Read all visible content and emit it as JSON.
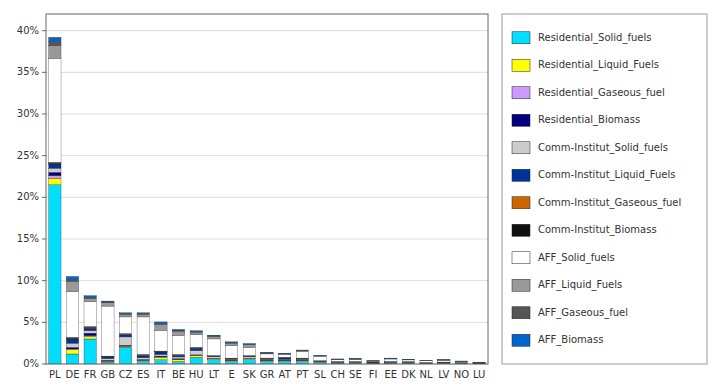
{
  "chart_data": {
    "type": "bar",
    "stacked": true,
    "grid": true,
    "legend": "right",
    "categories": [
      "PL",
      "DE",
      "FR",
      "GB",
      "CZ",
      "ES",
      "IT",
      "BE",
      "HU",
      "LT",
      "E",
      "SK",
      "GR",
      "AT",
      "PT",
      "SL",
      "CH",
      "SE",
      "FI",
      "EE",
      "DK",
      "NL",
      "LV",
      "NO",
      "LU"
    ],
    "ylim": [
      0,
      0.42
    ],
    "yticks": [
      {
        "value": 0,
        "label": "0%"
      },
      {
        "value": 0.05,
        "label": "5%"
      },
      {
        "value": 0.1,
        "label": "10%"
      },
      {
        "value": 0.15,
        "label": "15%"
      },
      {
        "value": 0.2,
        "label": "20%"
      },
      {
        "value": 0.25,
        "label": "25%"
      },
      {
        "value": 0.3,
        "label": "30%"
      },
      {
        "value": 0.35,
        "label": "35%"
      },
      {
        "value": 0.4,
        "label": "40%"
      }
    ],
    "series": [
      {
        "name": "Residential_Solid_fuels",
        "color": "#00DDFF",
        "values": [
          0.215,
          0.012,
          0.03,
          0.002,
          0.02,
          0.003,
          0.005,
          0.003,
          0.008,
          0.005,
          0.003,
          0.005,
          0.003,
          0.003,
          0.003,
          0.002,
          0.001,
          0.001,
          0.0005,
          0.001,
          0.001,
          0.0005,
          0.001,
          0.0005,
          0.0003
        ]
      },
      {
        "name": "Residential_Liquid_Fuels",
        "color": "#FFFF00",
        "values": [
          0.008,
          0.005,
          0.003,
          0.001,
          0.001,
          0.001,
          0.003,
          0.002,
          0.002,
          0.001,
          0.001,
          0.001,
          0.001,
          0.001,
          0.001,
          0.0005,
          0.0005,
          0.0005,
          0.0005,
          0.0005,
          0.0005,
          0.0003,
          0.0003,
          0.0003,
          0.0002
        ]
      },
      {
        "name": "Residential_Gaseous_fuel",
        "color": "#CC99FF",
        "values": [
          0.003,
          0.001,
          0.001,
          0.0005,
          0.0005,
          0.0005,
          0.0005,
          0.0005,
          0.0005,
          0.0002,
          0.0002,
          0.0002,
          0.0002,
          0.0002,
          0.0002,
          0.0001,
          0.0001,
          0.0001,
          0.0001,
          0.0001,
          0.0001,
          0.0001,
          0.0001,
          0.0001,
          0.0001
        ]
      },
      {
        "name": "Residential_Biomass",
        "color": "#000080",
        "values": [
          0.004,
          0.002,
          0.003,
          0.001,
          0.001,
          0.001,
          0.001,
          0.001,
          0.0005,
          0.0005,
          0.0005,
          0.0005,
          0.0005,
          0.0005,
          0.0005,
          0.0002,
          0.0002,
          0.0002,
          0.0001,
          0.0002,
          0.0001,
          0.0001,
          0.0001,
          0.0001,
          0.0001
        ]
      },
      {
        "name": "Comm-Institut_Solid_fuels",
        "color": "#CCCCCC",
        "values": [
          0.005,
          0.005,
          0.003,
          0.002,
          0.01,
          0.002,
          0.002,
          0.002,
          0.005,
          0.002,
          0.001,
          0.002,
          0.001,
          0.001,
          0.001,
          0.0005,
          0.0005,
          0.0005,
          0.0005,
          0.0005,
          0.0005,
          0.0003,
          0.0003,
          0.0003,
          0.0002
        ]
      },
      {
        "name": "Comm-Institut_Liquid_Fuels",
        "color": "#003399",
        "values": [
          0.005,
          0.005,
          0.003,
          0.002,
          0.003,
          0.003,
          0.003,
          0.002,
          0.003,
          0.001,
          0.001,
          0.001,
          0.001,
          0.002,
          0.001,
          0.0005,
          0.0005,
          0.0005,
          0.0005,
          0.0005,
          0.0005,
          0.0003,
          0.0003,
          0.0003,
          0.0002
        ]
      },
      {
        "name": "Comm-Institut_Gaseous_fuel",
        "color": "#CC6600",
        "values": [
          0.001,
          0.001,
          0.001,
          0.0005,
          0.0005,
          0.0005,
          0.0005,
          0.0005,
          0.0005,
          0.0002,
          0.0002,
          0.0002,
          0.0002,
          0.0002,
          0.0002,
          0.0001,
          0.0001,
          0.0001,
          0.0001,
          0.0001,
          0.0001,
          0.0001,
          0.0001,
          0.0001,
          0.0001
        ]
      },
      {
        "name": "Comm-Institut_Biomass",
        "color": "#111111",
        "values": [
          0.001,
          0.001,
          0.001,
          0.0005,
          0.0005,
          0.0005,
          0.0005,
          0.0005,
          0.0005,
          0.0002,
          0.0002,
          0.0002,
          0.0002,
          0.0002,
          0.0002,
          0.0001,
          0.0001,
          0.0001,
          0.0001,
          0.0001,
          0.0001,
          0.0001,
          0.0001,
          0.0001,
          0.0001
        ]
      },
      {
        "name": "AFF_Solid_fuels",
        "color": "#FFFFFF",
        "values": [
          0.125,
          0.055,
          0.03,
          0.06,
          0.02,
          0.045,
          0.025,
          0.023,
          0.015,
          0.02,
          0.015,
          0.01,
          0.005,
          0.003,
          0.008,
          0.005,
          0.002,
          0.002,
          0.001,
          0.003,
          0.002,
          0.002,
          0.002,
          0.001,
          0.0005
        ]
      },
      {
        "name": "AFF_Liquid_Fuels",
        "color": "#999999",
        "values": [
          0.015,
          0.012,
          0.004,
          0.004,
          0.003,
          0.003,
          0.007,
          0.005,
          0.003,
          0.003,
          0.003,
          0.003,
          0.001,
          0.001,
          0.001,
          0.001,
          0.0005,
          0.001,
          0.0005,
          0.0005,
          0.0005,
          0.0005,
          0.0005,
          0.0005,
          0.0002
        ]
      },
      {
        "name": "AFF_Gaseous_fuel",
        "color": "#555555",
        "values": [
          0.005,
          0.002,
          0.001,
          0.001,
          0.001,
          0.001,
          0.001,
          0.001,
          0.001,
          0.0005,
          0.0005,
          0.0005,
          0.0002,
          0.0002,
          0.0002,
          0.0001,
          0.0001,
          0.0001,
          0.0001,
          0.0001,
          0.0001,
          0.0001,
          0.0001,
          0.0001,
          0.0001
        ]
      },
      {
        "name": "AFF_Biomass",
        "color": "#0066CC",
        "values": [
          0.005,
          0.004,
          0.002,
          0.001,
          0.001,
          0.001,
          0.002,
          0.001,
          0.001,
          0.001,
          0.001,
          0.001,
          0.0005,
          0.0005,
          0.0005,
          0.0005,
          0.0005,
          0.0005,
          0.0002,
          0.0005,
          0.0002,
          0.0002,
          0.0002,
          0.0002,
          0.0001
        ]
      }
    ]
  }
}
